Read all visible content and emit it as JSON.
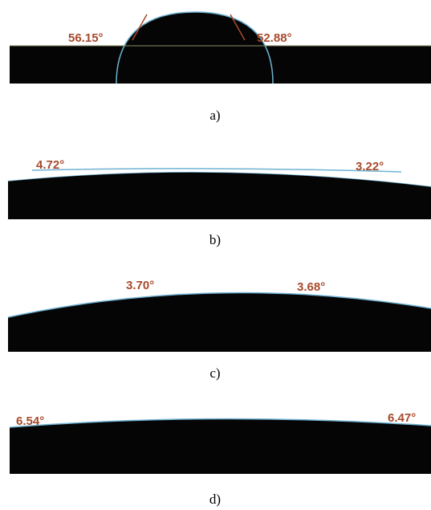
{
  "panels": [
    {
      "left_angle": "56.15°",
      "right_angle": "52.88°",
      "caption": "a)"
    },
    {
      "left_angle": "4.72°",
      "right_angle": "3.22°",
      "caption": "b)"
    },
    {
      "left_angle": "3.70°",
      "right_angle": "3.68°",
      "caption": "c)"
    },
    {
      "left_angle": "6.54°",
      "right_angle": "6.47°",
      "caption": "d)"
    }
  ]
}
